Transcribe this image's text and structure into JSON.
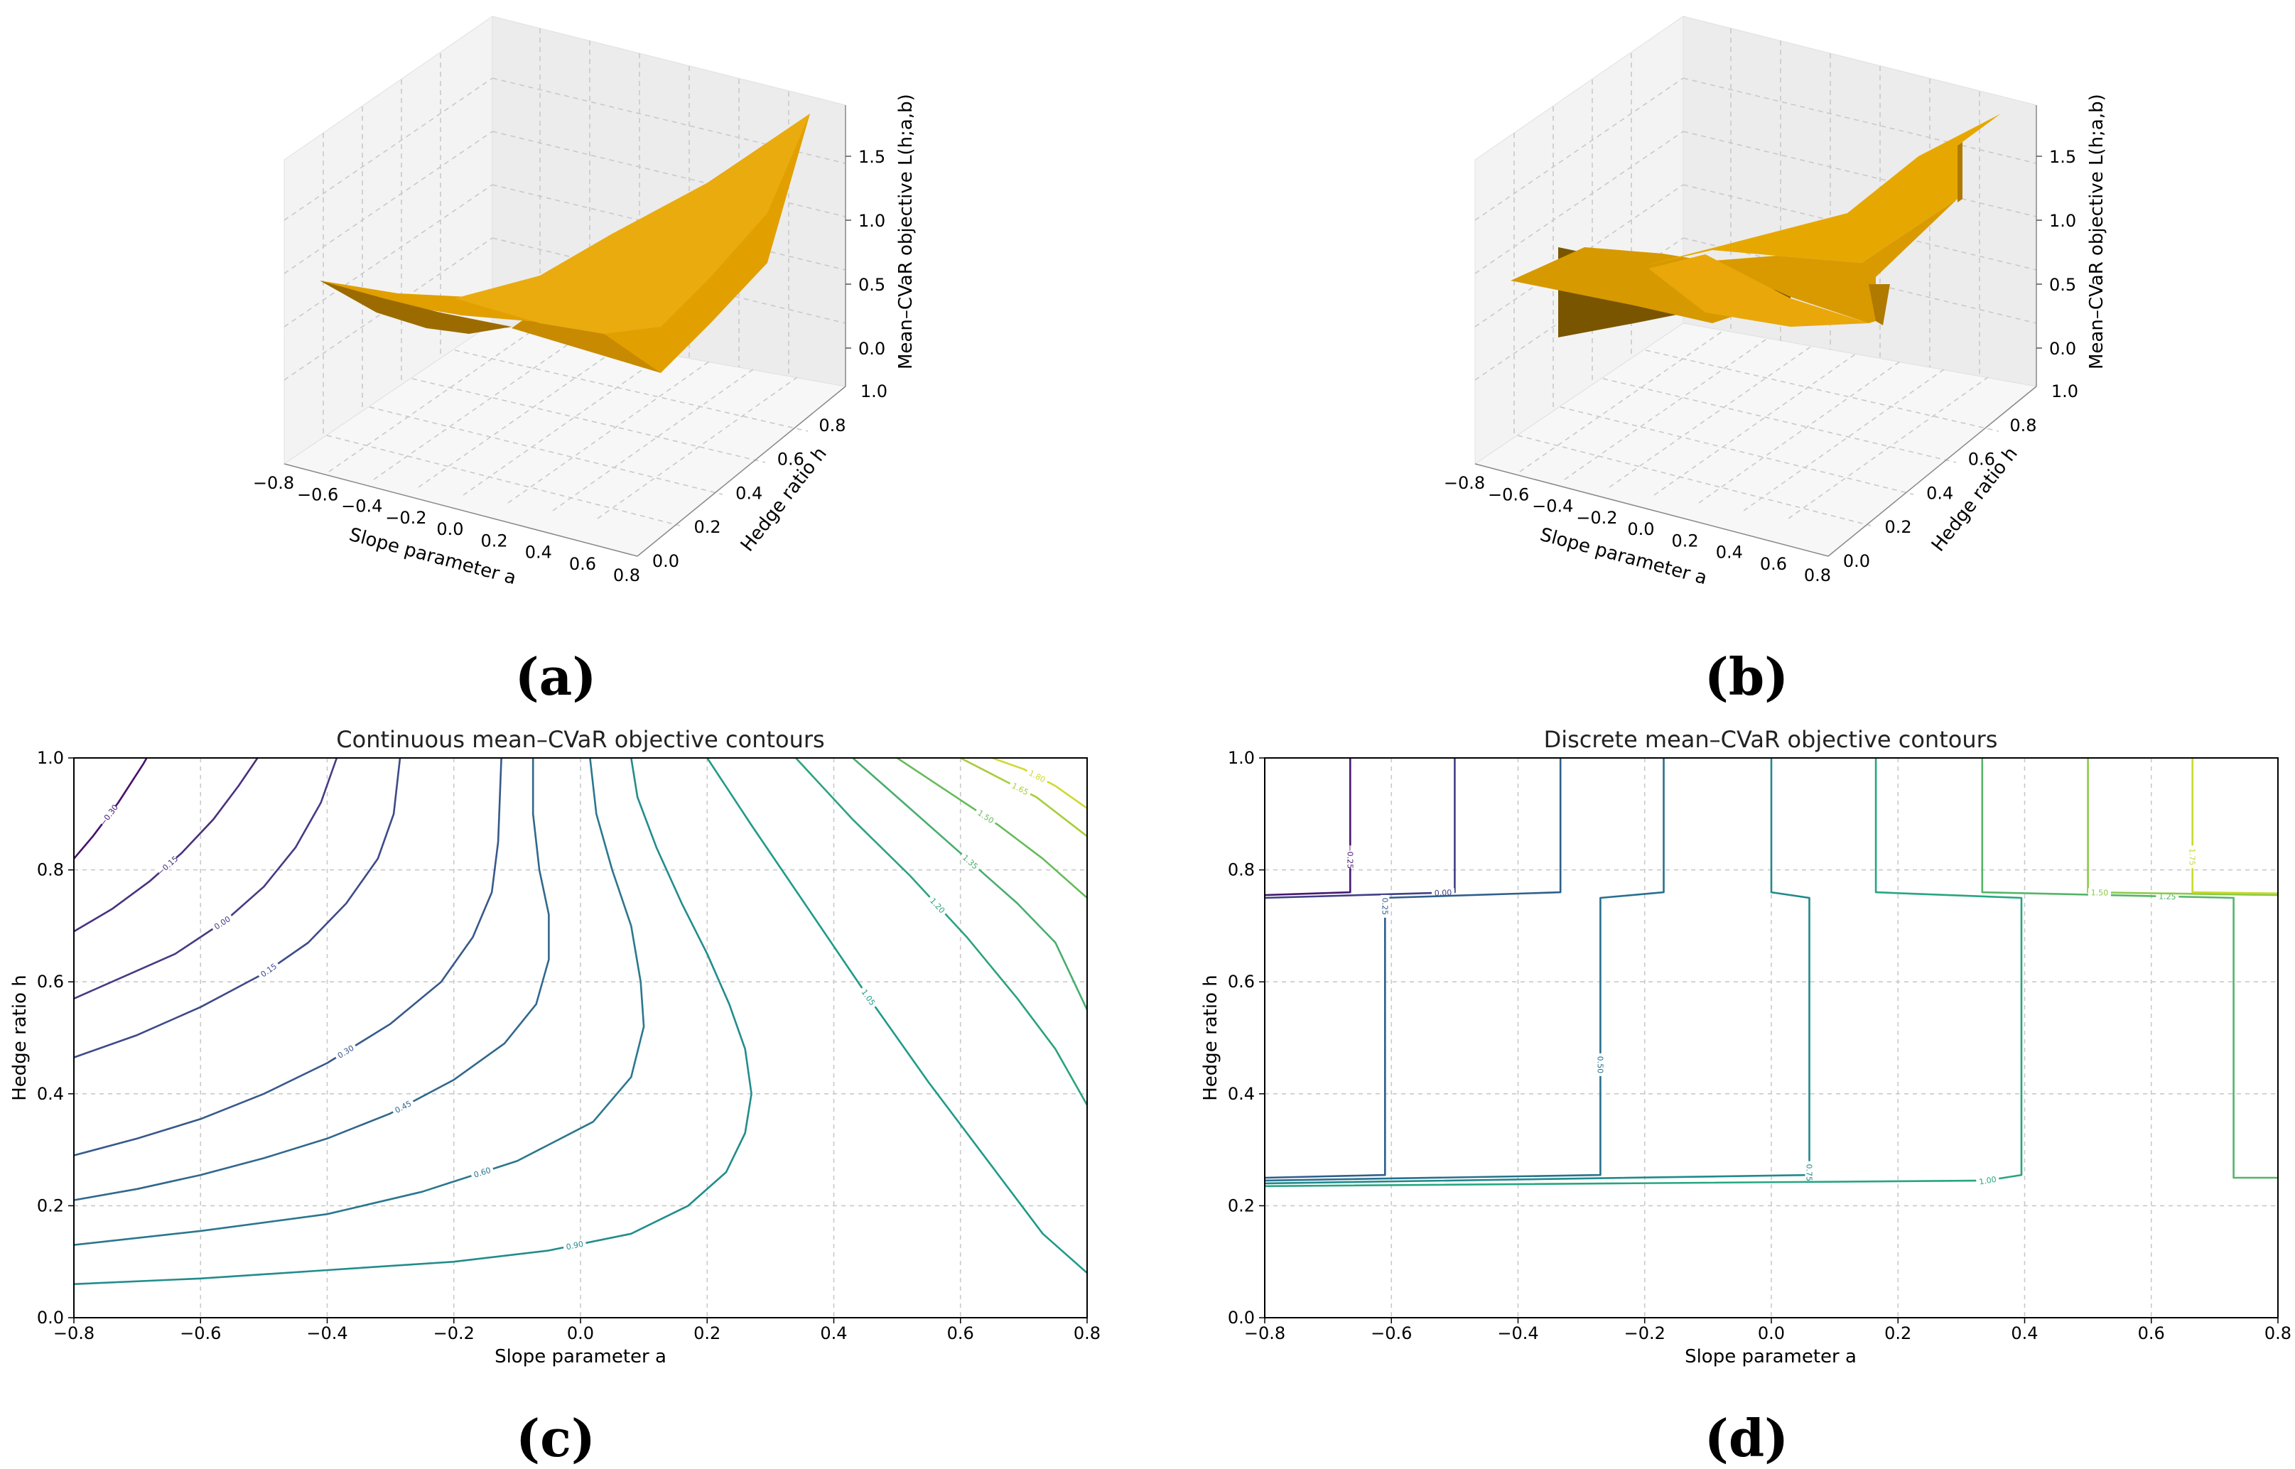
{
  "panels": {
    "a": "(a)",
    "b": "(b)",
    "c": "(c)",
    "d": "(d)"
  },
  "chart_data": [
    {
      "id": "a",
      "type": "surface3d",
      "title": "",
      "xlabel": "Slope parameter a",
      "ylabel": "Hedge ratio h",
      "zlabel": "Mean–CVaR objective L(h;a,b)",
      "xticks": [
        "−0.8",
        "−0.6",
        "−0.4",
        "−0.2",
        "0.0",
        "0.2",
        "0.4",
        "0.6",
        "0.8"
      ],
      "yticks": [
        "0.0",
        "0.2",
        "0.4",
        "0.6",
        "0.8",
        "1.0"
      ],
      "zticks": [
        "0.0",
        "0.5",
        "1.0",
        "1.5"
      ],
      "xlim": [
        -0.8,
        0.8
      ],
      "ylim": [
        0.0,
        1.0
      ],
      "zlim": [
        -0.3,
        1.9
      ],
      "surface": "smooth, rising from about -0.1 at a=-0.8,h=1.0 to about 1.8 at a=0.8,h=1.0",
      "color": "#e8a000"
    },
    {
      "id": "b",
      "type": "surface3d",
      "title": "",
      "xlabel": "Slope parameter a",
      "ylabel": "Hedge ratio h",
      "zlabel": "Mean–CVaR objective L(h;a,b)",
      "xticks": [
        "−0.8",
        "−0.6",
        "−0.4",
        "−0.2",
        "0.0",
        "0.2",
        "0.4",
        "0.6",
        "0.8"
      ],
      "yticks": [
        "0.0",
        "0.2",
        "0.4",
        "0.6",
        "0.8",
        "1.0"
      ],
      "zticks": [
        "0.0",
        "0.5",
        "1.0",
        "1.5"
      ],
      "xlim": [
        -0.8,
        0.8
      ],
      "ylim": [
        0.0,
        1.0
      ],
      "zlim": [
        -0.3,
        1.9
      ],
      "surface": "piecewise-constant steps (discrete objective)",
      "color": "#e8a000"
    },
    {
      "id": "c",
      "type": "contour",
      "title": "Continuous mean–CVaR objective contours",
      "xlabel": "Slope parameter a",
      "ylabel": "Hedge ratio h",
      "xlim": [
        -0.8,
        0.8
      ],
      "ylim": [
        0.0,
        1.0
      ],
      "xticks": [
        "−0.8",
        "−0.6",
        "−0.4",
        "−0.2",
        "0.0",
        "0.2",
        "0.4",
        "0.6",
        "0.8"
      ],
      "yticks": [
        "0.0",
        "0.2",
        "0.4",
        "0.6",
        "0.8",
        "1.0"
      ],
      "levels": [
        {
          "label": "−0.30",
          "color": "#45116d",
          "pts": [
            [
              -0.8,
              0.82
            ],
            [
              -0.77,
              0.86
            ],
            [
              -0.73,
              0.92
            ],
            [
              -0.69,
              0.99
            ],
            [
              -0.685,
              1.0
            ]
          ]
        },
        {
          "label": "−0.15",
          "color": "#48317e",
          "pts": [
            [
              -0.8,
              0.69
            ],
            [
              -0.74,
              0.73
            ],
            [
              -0.68,
              0.78
            ],
            [
              -0.63,
              0.83
            ],
            [
              -0.58,
              0.89
            ],
            [
              -0.54,
              0.95
            ],
            [
              -0.51,
              1.0
            ]
          ]
        },
        {
          "label": "0.00",
          "color": "#453b84",
          "pts": [
            [
              -0.8,
              0.57
            ],
            [
              -0.72,
              0.61
            ],
            [
              -0.64,
              0.65
            ],
            [
              -0.56,
              0.71
            ],
            [
              -0.5,
              0.77
            ],
            [
              -0.45,
              0.84
            ],
            [
              -0.41,
              0.92
            ],
            [
              -0.385,
              1.0
            ]
          ]
        },
        {
          "label": "0.15",
          "color": "#3e4a89",
          "pts": [
            [
              -0.8,
              0.465
            ],
            [
              -0.7,
              0.505
            ],
            [
              -0.6,
              0.555
            ],
            [
              -0.5,
              0.615
            ],
            [
              -0.43,
              0.67
            ],
            [
              -0.37,
              0.74
            ],
            [
              -0.32,
              0.82
            ],
            [
              -0.295,
              0.9
            ],
            [
              -0.285,
              1.0
            ]
          ]
        },
        {
          "label": "0.30",
          "color": "#37598c",
          "pts": [
            [
              -0.8,
              0.29
            ],
            [
              -0.7,
              0.32
            ],
            [
              -0.6,
              0.355
            ],
            [
              -0.5,
              0.4
            ],
            [
              -0.4,
              0.455
            ],
            [
              -0.3,
              0.525
            ],
            [
              -0.22,
              0.6
            ],
            [
              -0.17,
              0.68
            ],
            [
              -0.14,
              0.76
            ],
            [
              -0.13,
              0.85
            ],
            [
              -0.125,
              1.0
            ]
          ]
        },
        {
          "label": "0.45",
          "color": "#30688d",
          "pts": [
            [
              -0.8,
              0.21
            ],
            [
              -0.7,
              0.23
            ],
            [
              -0.6,
              0.255
            ],
            [
              -0.5,
              0.285
            ],
            [
              -0.4,
              0.32
            ],
            [
              -0.3,
              0.365
            ],
            [
              -0.2,
              0.425
            ],
            [
              -0.12,
              0.49
            ],
            [
              -0.07,
              0.56
            ],
            [
              -0.05,
              0.64
            ],
            [
              -0.05,
              0.72
            ],
            [
              -0.065,
              0.8
            ],
            [
              -0.075,
              0.9
            ],
            [
              -0.075,
              1.0
            ]
          ]
        },
        {
          "label": "0.60",
          "color": "#2b778e",
          "pts": [
            [
              -0.8,
              0.13
            ],
            [
              -0.6,
              0.155
            ],
            [
              -0.4,
              0.185
            ],
            [
              -0.25,
              0.225
            ],
            [
              -0.1,
              0.28
            ],
            [
              0.02,
              0.35
            ],
            [
              0.08,
              0.43
            ],
            [
              0.1,
              0.52
            ],
            [
              0.095,
              0.6
            ],
            [
              0.08,
              0.7
            ],
            [
              0.05,
              0.8
            ],
            [
              0.025,
              0.9
            ],
            [
              0.015,
              1.0
            ]
          ]
        },
        {
          "label": "0.90",
          "color": "#228c8c",
          "pts": [
            [
              -0.8,
              0.06
            ],
            [
              -0.6,
              0.07
            ],
            [
              -0.4,
              0.085
            ],
            [
              -0.2,
              0.1
            ],
            [
              -0.05,
              0.12
            ],
            [
              0.08,
              0.15
            ],
            [
              0.17,
              0.2
            ],
            [
              0.23,
              0.26
            ],
            [
              0.26,
              0.33
            ],
            [
              0.27,
              0.4
            ],
            [
              0.26,
              0.48
            ],
            [
              0.235,
              0.56
            ],
            [
              0.2,
              0.65
            ],
            [
              0.16,
              0.74
            ],
            [
              0.12,
              0.84
            ],
            [
              0.09,
              0.93
            ],
            [
              0.08,
              1.0
            ]
          ]
        },
        {
          "label": "1.05",
          "color": "#1f9a89",
          "pts": [
            [
              0.2,
              1.0
            ],
            [
              0.27,
              0.88
            ],
            [
              0.36,
              0.73
            ],
            [
              0.45,
              0.58
            ],
            [
              0.55,
              0.42
            ],
            [
              0.65,
              0.27
            ],
            [
              0.73,
              0.15
            ],
            [
              0.8,
              0.08
            ]
          ]
        },
        {
          "label": "1.20",
          "color": "#2ba27f",
          "pts": [
            [
              0.34,
              1.0
            ],
            [
              0.43,
              0.89
            ],
            [
              0.52,
              0.79
            ],
            [
              0.61,
              0.68
            ],
            [
              0.69,
              0.57
            ],
            [
              0.75,
              0.48
            ],
            [
              0.8,
              0.38
            ]
          ]
        },
        {
          "label": "1.35",
          "color": "#48ad6d",
          "pts": [
            [
              0.43,
              1.0
            ],
            [
              0.52,
              0.91
            ],
            [
              0.61,
              0.82
            ],
            [
              0.69,
              0.74
            ],
            [
              0.75,
              0.67
            ],
            [
              0.8,
              0.55
            ]
          ]
        },
        {
          "label": "1.50",
          "color": "#67bb5a",
          "pts": [
            [
              0.5,
              1.0
            ],
            [
              0.58,
              0.94
            ],
            [
              0.66,
              0.88
            ],
            [
              0.73,
              0.82
            ],
            [
              0.8,
              0.75
            ]
          ]
        },
        {
          "label": "1.65",
          "color": "#a8cd3a",
          "pts": [
            [
              0.6,
              1.0
            ],
            [
              0.66,
              0.965
            ],
            [
              0.72,
              0.93
            ],
            [
              0.8,
              0.86
            ]
          ]
        },
        {
          "label": "1.80",
          "color": "#d0d92f",
          "pts": [
            [
              0.65,
              1.0
            ],
            [
              0.7,
              0.98
            ],
            [
              0.75,
              0.95
            ],
            [
              0.8,
              0.91
            ]
          ]
        }
      ]
    },
    {
      "id": "d",
      "type": "contour",
      "title": "Discrete mean–CVaR objective contours",
      "xlabel": "Slope parameter a",
      "ylabel": "Hedge ratio h",
      "xlim": [
        -0.8,
        0.8
      ],
      "ylim": [
        0.0,
        1.0
      ],
      "xticks": [
        "−0.8",
        "−0.6",
        "−0.4",
        "−0.2",
        "0.0",
        "0.2",
        "0.4",
        "0.6",
        "0.8"
      ],
      "yticks": [
        "0.0",
        "0.2",
        "0.4",
        "0.6",
        "0.8",
        "1.0"
      ],
      "levels": [
        {
          "label": "−0.25",
          "color": "#46196f",
          "pts": [
            [
              -0.665,
              1.0
            ],
            [
              -0.665,
              0.76
            ],
            [
              -0.8,
              0.755
            ]
          ]
        },
        {
          "label": "0.00",
          "color": "#403f86",
          "pts": [
            [
              -0.5,
              1.0
            ],
            [
              -0.5,
              0.76
            ],
            [
              -0.8,
              0.75
            ]
          ]
        },
        {
          "label": "0.25",
          "color": "#2f5e8c",
          "pts": [
            [
              -0.333,
              1.0
            ],
            [
              -0.333,
              0.76
            ],
            [
              -0.61,
              0.75
            ],
            [
              -0.61,
              0.255
            ],
            [
              -0.8,
              0.25
            ]
          ]
        },
        {
          "label": "0.50",
          "color": "#28708e",
          "pts": [
            [
              -0.17,
              1.0
            ],
            [
              -0.17,
              0.76
            ],
            [
              -0.27,
              0.75
            ],
            [
              -0.27,
              0.255
            ],
            [
              -0.8,
              0.245
            ]
          ]
        },
        {
          "label": "0.75",
          "color": "#21898b",
          "pts": [
            [
              0.0,
              1.0
            ],
            [
              0.0,
              0.76
            ],
            [
              0.06,
              0.75
            ],
            [
              0.06,
              0.255
            ],
            [
              -0.8,
              0.24
            ]
          ]
        },
        {
          "label": "1.00",
          "color": "#26a680",
          "pts": [
            [
              0.165,
              1.0
            ],
            [
              0.165,
              0.76
            ],
            [
              0.395,
              0.75
            ],
            [
              0.395,
              0.255
            ],
            [
              0.34,
              0.245
            ],
            [
              -0.8,
              0.235
            ]
          ]
        },
        {
          "label": "1.25",
          "color": "#54b567",
          "pts": [
            [
              0.333,
              1.0
            ],
            [
              0.333,
              0.76
            ],
            [
              0.73,
              0.75
            ],
            [
              0.73,
              0.25
            ],
            [
              0.8,
              0.25
            ]
          ]
        },
        {
          "label": "1.50",
          "color": "#8bca46",
          "pts": [
            [
              0.5,
              1.0
            ],
            [
              0.5,
              0.76
            ],
            [
              0.8,
              0.755
            ]
          ]
        },
        {
          "label": "1.75",
          "color": "#c7d92f",
          "pts": [
            [
              0.665,
              1.0
            ],
            [
              0.665,
              0.76
            ],
            [
              0.8,
              0.758
            ]
          ]
        }
      ]
    }
  ]
}
